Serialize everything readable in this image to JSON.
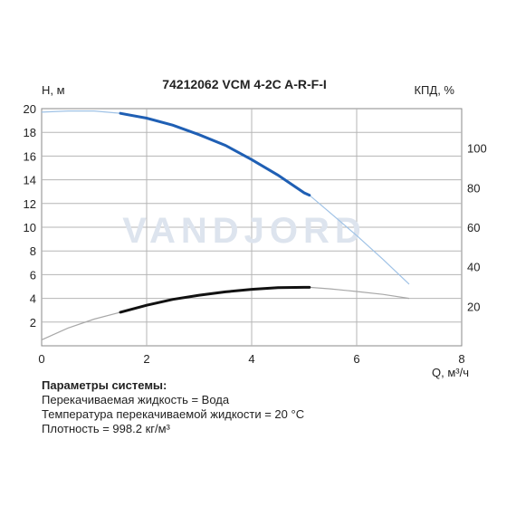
{
  "chart_data": {
    "type": "line",
    "title": "74212062 VCM 4-2C A-R-F-I",
    "watermark": "VANDJORD",
    "xlabel": "Q, м³/ч",
    "ylabel_left": "H, м",
    "ylabel_right": "КПД, %",
    "xlim": [
      0,
      8
    ],
    "ylim_left": [
      0,
      20
    ],
    "ylim_right": [
      0,
      120
    ],
    "x_ticks": [
      "0",
      "2",
      "4",
      "6",
      "8"
    ],
    "y_left_ticks": [
      "2",
      "4",
      "6",
      "8",
      "10",
      "12",
      "14",
      "16",
      "18",
      "20"
    ],
    "y_right_ticks": [
      "20",
      "40",
      "60",
      "80",
      "100"
    ],
    "grid": true,
    "series": [
      {
        "color_faint": "#9fc2e6",
        "color_bold": "#1f5fb4",
        "axis": "left",
        "bold_range": [
          1.5,
          5.1
        ],
        "x": [
          0,
          0.5,
          1.0,
          1.5,
          2.0,
          2.5,
          3.0,
          3.5,
          4.0,
          4.5,
          5.0,
          5.1,
          5.5,
          6.0,
          6.5,
          7.0
        ],
        "y": [
          19.7,
          19.8,
          19.8,
          19.6,
          19.2,
          18.6,
          17.8,
          16.9,
          15.7,
          14.4,
          12.9,
          12.7,
          11.2,
          9.3,
          7.3,
          5.2
        ]
      },
      {
        "color_faint": "#a8a8a8",
        "color_bold": "#111111",
        "axis": "right",
        "bold_range": [
          1.5,
          5.1
        ],
        "x": [
          0,
          0.5,
          1.0,
          1.5,
          2.0,
          2.5,
          3.0,
          3.5,
          4.0,
          4.5,
          5.0,
          5.1,
          5.5,
          6.0,
          6.5,
          7.0
        ],
        "y": [
          3,
          9,
          13.5,
          17,
          20.5,
          23.5,
          25.6,
          27.3,
          28.6,
          29.4,
          29.6,
          29.6,
          28.8,
          27.5,
          26,
          24
        ]
      }
    ]
  },
  "params": {
    "header": "Параметры системы:",
    "lines": [
      "Перекачиваемая жидкость = Вода",
      "Температура перекачиваемой жидкости = 20 °C",
      "Плотность = 998.2 кг/м³"
    ]
  }
}
